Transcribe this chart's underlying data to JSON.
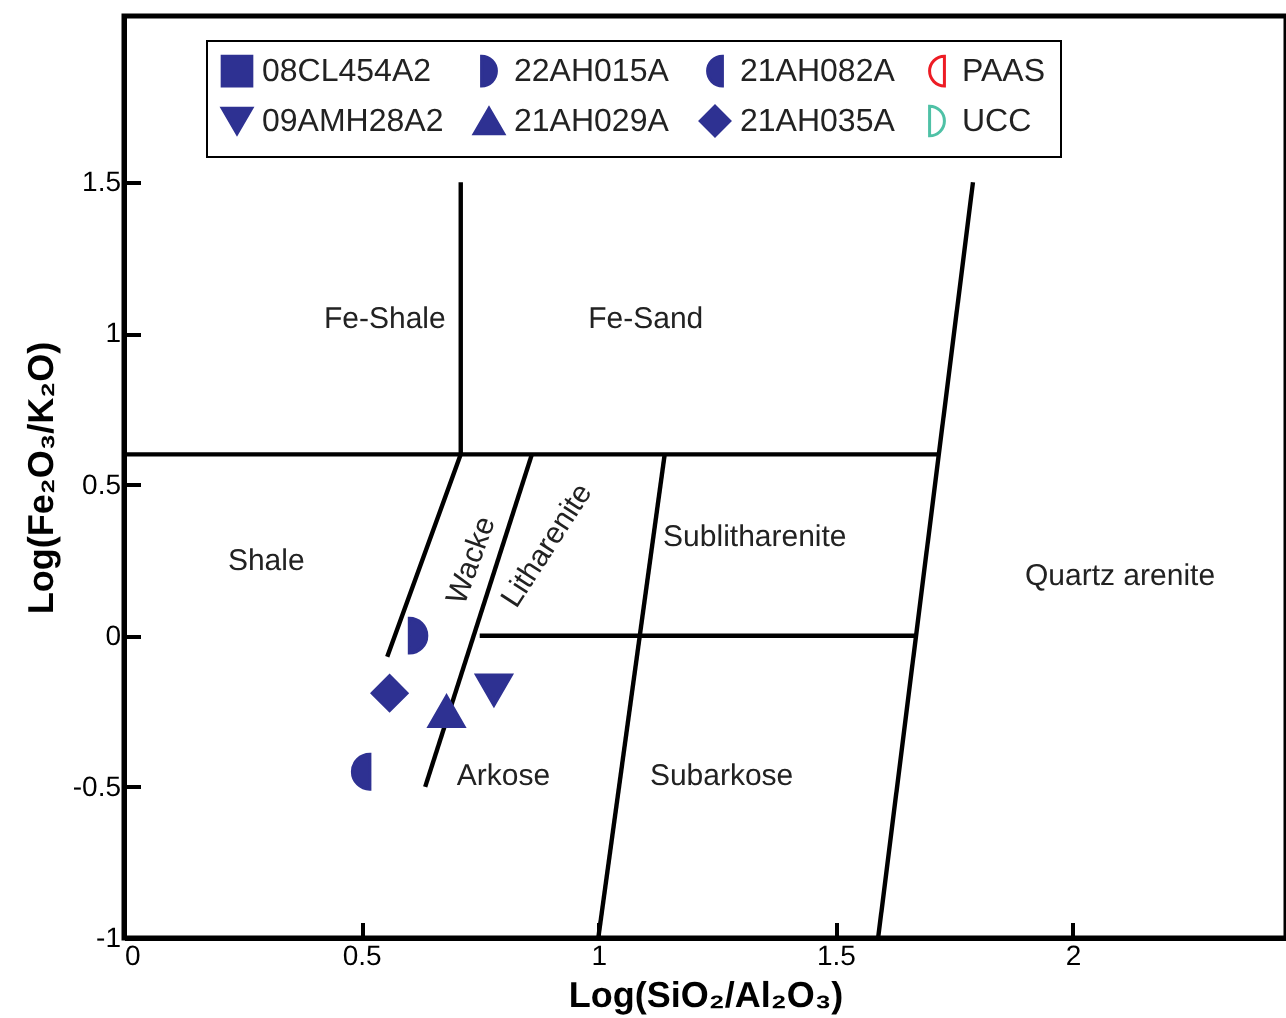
{
  "chart_data": {
    "type": "scatter",
    "xlabel": "Log(SiO₂/Al₂O₃)",
    "ylabel": "Log(Fe₂O₃/K₂O)",
    "xlim": [
      0,
      2.45
    ],
    "ylim": [
      -1,
      2.05
    ],
    "xticks": [
      0,
      0.5,
      1,
      1.5,
      2
    ],
    "yticks": [
      -1,
      -0.5,
      0,
      0.5,
      1,
      1.5
    ],
    "legend": "top",
    "series": [
      {
        "name": "08CL454A2",
        "color": "#2e3192"
      },
      {
        "name": "09AMH28A2",
        "color": "#2e3192",
        "x": [
          0.78
        ],
        "values": [
          -0.18
        ]
      },
      {
        "name": "22AH015A",
        "color": "#2e3192",
        "x": [
          0.62
        ],
        "values": [
          0
        ]
      },
      {
        "name": "21AH029A",
        "color": "#2e3192",
        "x": [
          0.68
        ],
        "values": [
          -0.25
        ]
      },
      {
        "name": "21AH082A",
        "color": "#2e3192",
        "x": [
          0.5
        ],
        "values": [
          -0.45
        ]
      },
      {
        "name": "21AH035A",
        "color": "#2e3192",
        "x": [
          0.56
        ],
        "values": [
          -0.19
        ]
      },
      {
        "name": "PAAS",
        "color": "#ed1c24"
      },
      {
        "name": "UCC",
        "color": "#4fc1a6"
      },
      {
        "color": "#000000",
        "type": "line",
        "x": [
          0,
          1.72
        ],
        "values": [
          0.6,
          0.6
        ]
      },
      {
        "color": "#000000",
        "type": "line",
        "x": [
          0.71,
          0.71,
          0.555
        ],
        "values": [
          1.5,
          0.6,
          -0.07
        ]
      },
      {
        "color": "#000000",
        "type": "line",
        "x": [
          1.79,
          1.59
        ],
        "values": [
          1.5,
          -1
        ]
      },
      {
        "color": "#000000",
        "type": "line",
        "x": [
          1.14,
          1.0
        ],
        "values": [
          0.6,
          -1
        ]
      },
      {
        "color": "#000000",
        "type": "line",
        "x": [
          0.75,
          1.67
        ],
        "values": [
          0,
          0
        ]
      },
      {
        "color": "#000000",
        "type": "line",
        "x": [
          0.86,
          0.635
        ],
        "values": [
          0.6,
          -0.5
        ]
      }
    ],
    "annotations": [
      "Fe-Shale",
      "Fe-Sand",
      "Shale",
      "Wacke",
      "Litharenite",
      "Sublitharenite",
      "Quartz arenite",
      "Arkose",
      "Subarkose"
    ]
  }
}
